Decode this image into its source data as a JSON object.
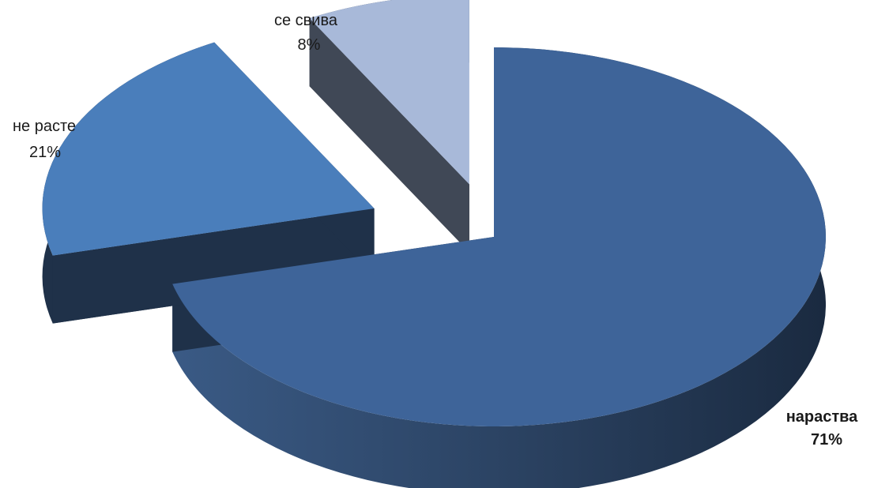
{
  "chart_data": {
    "type": "pie",
    "style": "3d-exploded",
    "title": "",
    "slices": [
      {
        "label": "нараства",
        "value": 71,
        "percent_label": "71%",
        "color": "#3e6499",
        "side_color": "#1f3149",
        "emphasis": "bold"
      },
      {
        "label": "не расте",
        "value": 21,
        "percent_label": "21%",
        "color": "#4a7ebb",
        "side_color": "#1f3149",
        "emphasis": "normal"
      },
      {
        "label": "се свива",
        "value": 8,
        "percent_label": "8%",
        "color": "#a8b9d9",
        "side_color": "#404856",
        "emphasis": "normal"
      }
    ],
    "legend": "none"
  }
}
